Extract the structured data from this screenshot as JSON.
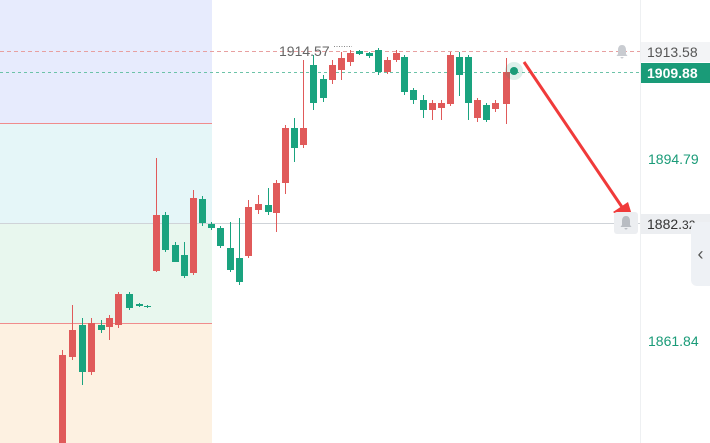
{
  "colors": {
    "up": "#e05a5a",
    "down": "#1aa37f",
    "grid": "#cfd3d8",
    "zone_top": "#e7ebfd",
    "zone_mid1": "#e5f6f8",
    "zone_mid2": "#e8f7ee",
    "zone_bottom": "#fdf1e1",
    "zone_line": "#f08c8c",
    "current_price_bg": "#1a9b78",
    "arrow": "#f03a3a"
  },
  "chart": {
    "high_marker_label": "1914.57",
    "current_price_label": "1909.88",
    "alert_price_label": "1913.58",
    "crosshair_price_int": "1882.",
    "crosshair_price_dec": "32",
    "axis_labels": [
      "1894.79",
      "1861.84"
    ]
  },
  "icons": {
    "alert_bell": "bell-icon",
    "crosshair_bell": "bell-icon",
    "collapse": "chevron-left-icon"
  },
  "collapse_glyph": "‹"
}
